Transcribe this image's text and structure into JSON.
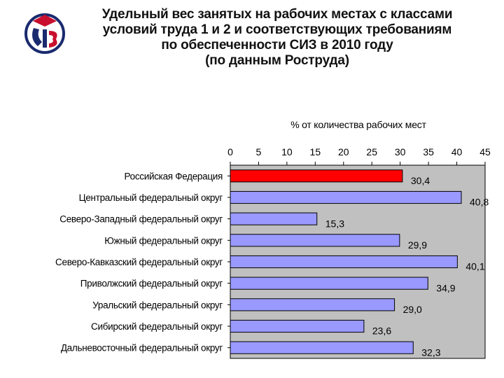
{
  "title_lines": [
    "Удельный вес занятых на рабочих местах с классами",
    "условий труда 1 и 2 и соответствующих требованиям",
    "по обеспеченности СИЗ в 2010 году",
    "(по данным Роструда)"
  ],
  "logo": {
    "icon": "siz-logo-icon",
    "color": "#c8102e",
    "shape_color": "#1a2a6e"
  },
  "colors": {
    "highlight_bar": "#ff0000",
    "bar": "#9999ff",
    "plot_bg": "#c0c0c0",
    "bar_border": "#000000"
  },
  "chart_data": {
    "type": "bar",
    "orientation": "horizontal",
    "title": "Удельный вес занятых на рабочих местах с классами условий труда 1 и 2 и соответствующих требованиям по обеспеченности СИЗ в 2010 году (по данным Роструда)",
    "xlabel": "% от количества рабочих мест",
    "xlim": [
      0,
      45
    ],
    "xticks": [
      "0",
      "5",
      "10",
      "15",
      "20",
      "25",
      "30",
      "35",
      "40",
      "45"
    ],
    "x_axis_position": "top",
    "grid": false,
    "legend": "none",
    "categories": [
      "Российская Федерация",
      "Центральный федеральный округ",
      "Северо-Западный федеральный округ",
      "Южный федеральный округ",
      "Северо-Кавказский федеральный округ",
      "Приволжский федеральный округ",
      "Уральский федеральный округ",
      "Сибирский федеральный округ",
      "Дальневосточный федеральный округ"
    ],
    "values": [
      30.4,
      40.8,
      15.3,
      29.9,
      40.1,
      34.9,
      29.0,
      23.6,
      32.3
    ],
    "value_labels": [
      "30,4",
      "40,8",
      "15,3",
      "29,9",
      "40,1",
      "34,9",
      "29,0",
      "23,6",
      "32,3"
    ],
    "highlight_index": 0
  }
}
